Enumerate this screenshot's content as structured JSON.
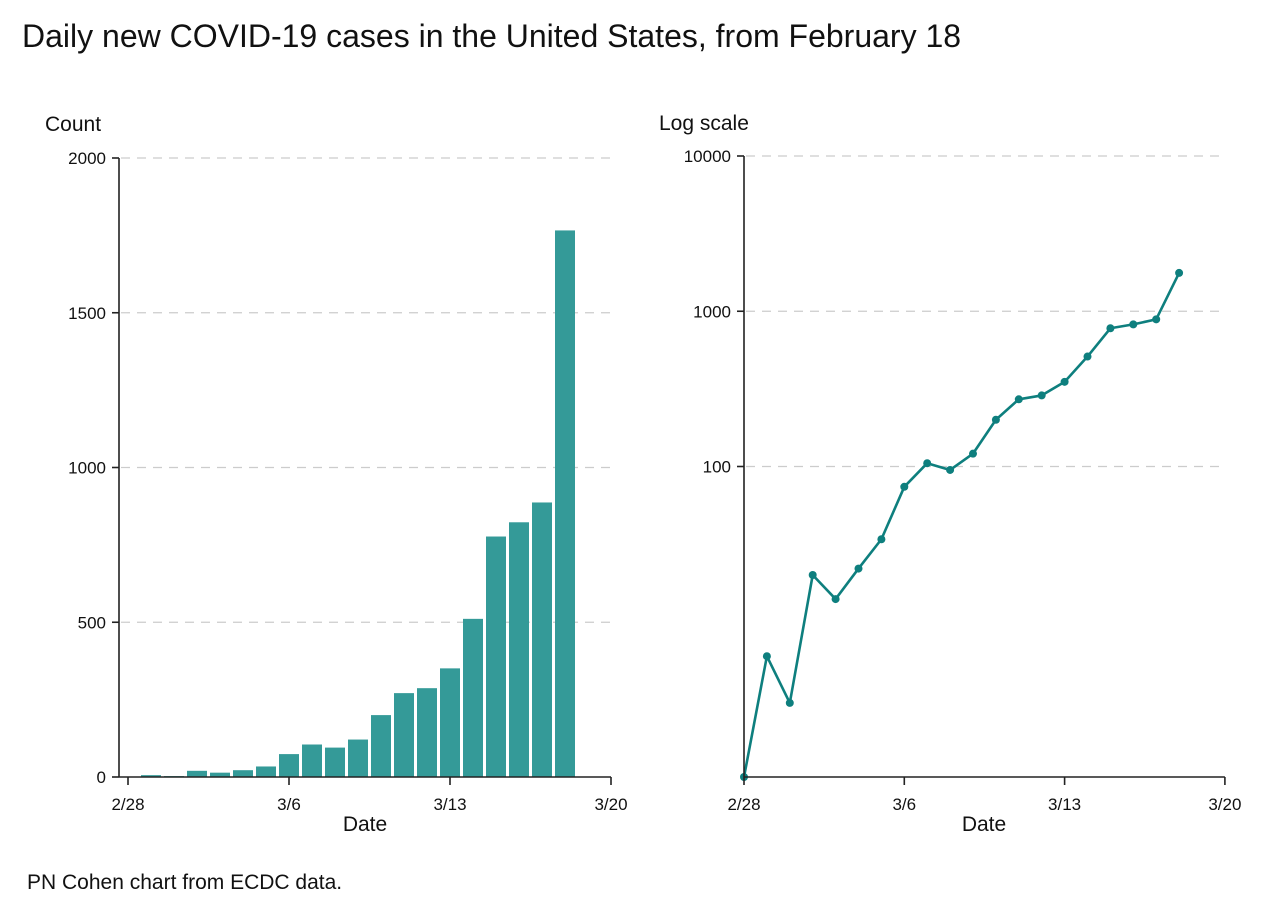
{
  "title": "Daily new COVID-19 cases in the United States, from February 18",
  "caption": "PN Cohen chart from ECDC data.",
  "colors": {
    "bar": "#349a98",
    "line": "#0e7f7e",
    "grid": "#cccccc"
  },
  "chart_data": [
    {
      "type": "bar",
      "ylabel": "Count",
      "xlabel": "Date",
      "ylim": [
        0,
        2000
      ],
      "yticks": [
        0,
        500,
        1000,
        1500,
        2000
      ],
      "ytick_labels": [
        "0",
        "500",
        "1000",
        "1500",
        "2000"
      ],
      "xticks": [
        "2/28",
        "3/6",
        "3/13",
        "3/20"
      ],
      "grid": true,
      "categories": [
        "2/28",
        "2/29",
        "3/1",
        "3/2",
        "3/3",
        "3/4",
        "3/5",
        "3/6",
        "3/7",
        "3/8",
        "3/9",
        "3/10",
        "3/11",
        "3/12",
        "3/13",
        "3/14",
        "3/15",
        "3/16",
        "3/17",
        "3/18"
      ],
      "values": [
        1,
        6,
        3,
        20,
        14,
        22,
        34,
        74,
        105,
        95,
        121,
        200,
        271,
        287,
        351,
        511,
        777,
        823,
        887,
        1766
      ]
    },
    {
      "type": "line",
      "ylabel": "Log scale",
      "xlabel": "Date",
      "yscale": "log",
      "ylim": [
        1,
        10000
      ],
      "yticks": [
        100,
        1000,
        10000
      ],
      "ytick_labels": [
        "100",
        "1000",
        "10000"
      ],
      "xticks": [
        "2/28",
        "3/6",
        "3/13",
        "3/20"
      ],
      "grid": true,
      "markers": true,
      "categories": [
        "2/28",
        "2/29",
        "3/1",
        "3/2",
        "3/3",
        "3/4",
        "3/5",
        "3/6",
        "3/7",
        "3/8",
        "3/9",
        "3/10",
        "3/11",
        "3/12",
        "3/13",
        "3/14",
        "3/15",
        "3/16",
        "3/17",
        "3/18"
      ],
      "values": [
        1,
        6,
        3,
        20,
        14,
        22,
        34,
        74,
        105,
        95,
        121,
        200,
        271,
        287,
        351,
        511,
        777,
        823,
        887,
        1766
      ]
    }
  ]
}
